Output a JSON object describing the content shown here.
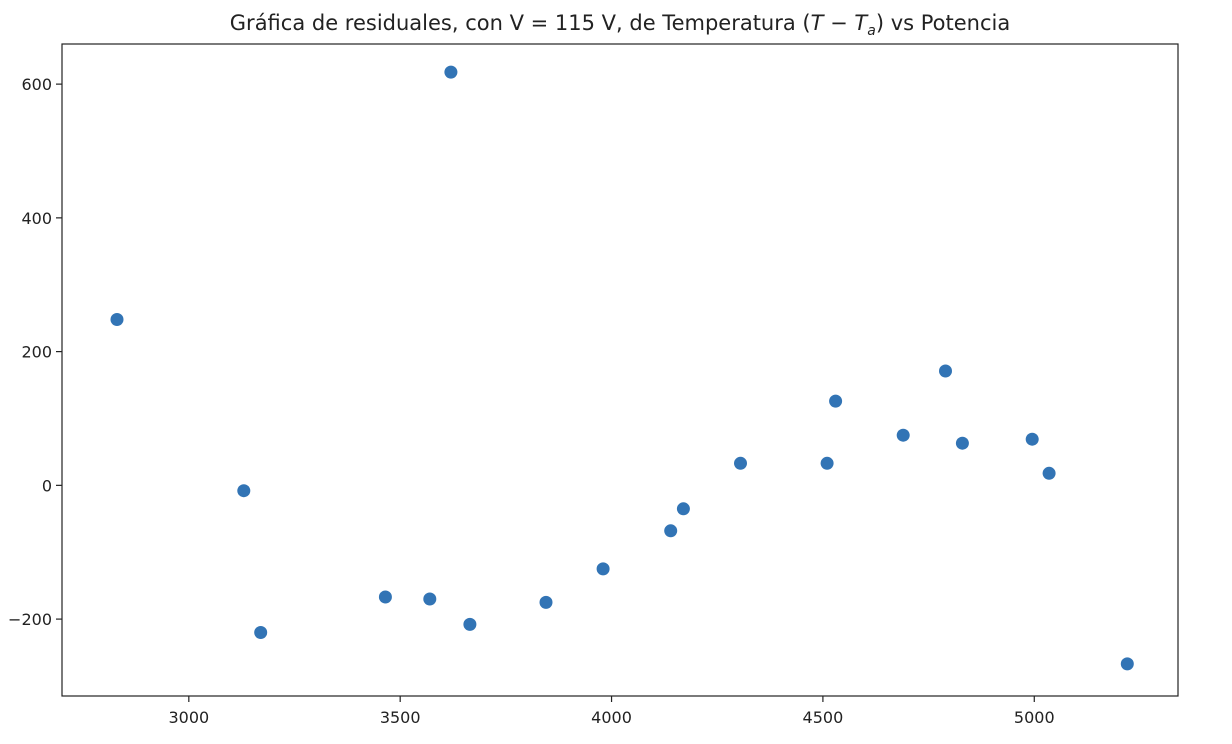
{
  "chart_data": {
    "type": "scatter",
    "title": "Gráfica de residuales, con V = 115 V, de Temperatura (T − Tₐ) vs Potencia",
    "title_parts": {
      "prefix": "Gráfica de residuales, con V = 115 V, de Temperatura (",
      "T": "T",
      "minus": " − ",
      "Ta_base": "T",
      "Ta_sub": "a",
      "suffix": ") vs Potencia"
    },
    "xlabel": "",
    "ylabel": "",
    "xlim": [
      2700,
      5340
    ],
    "ylim": [
      -315,
      660
    ],
    "x_ticks": [
      3000,
      3500,
      4000,
      4500,
      5000
    ],
    "y_ticks": [
      -200,
      0,
      200,
      400,
      600
    ],
    "x_tick_labels": [
      "3000",
      "3500",
      "4000",
      "4500",
      "5000"
    ],
    "y_tick_labels": [
      "−200",
      "0",
      "200",
      "400",
      "600"
    ],
    "grid": false,
    "legend": "none",
    "marker_color": "#3274b5",
    "points": [
      {
        "x": 2830,
        "y": 248
      },
      {
        "x": 3130,
        "y": -8
      },
      {
        "x": 3170,
        "y": -220
      },
      {
        "x": 3465,
        "y": -167
      },
      {
        "x": 3570,
        "y": -170
      },
      {
        "x": 3620,
        "y": 618
      },
      {
        "x": 3665,
        "y": -208
      },
      {
        "x": 3845,
        "y": -175
      },
      {
        "x": 3980,
        "y": -125
      },
      {
        "x": 4140,
        "y": -68
      },
      {
        "x": 4170,
        "y": -35
      },
      {
        "x": 4305,
        "y": 33
      },
      {
        "x": 4510,
        "y": 33
      },
      {
        "x": 4530,
        "y": 126
      },
      {
        "x": 4690,
        "y": 75
      },
      {
        "x": 4790,
        "y": 171
      },
      {
        "x": 4830,
        "y": 63
      },
      {
        "x": 4995,
        "y": 69
      },
      {
        "x": 5035,
        "y": 18
      },
      {
        "x": 5220,
        "y": -267
      }
    ]
  }
}
